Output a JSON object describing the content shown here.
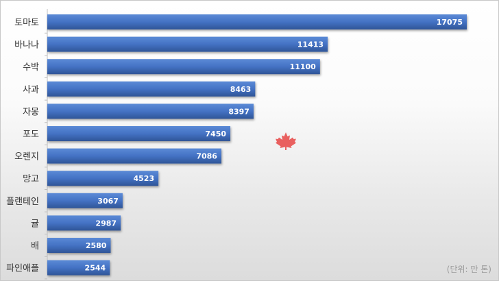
{
  "chart_data": {
    "type": "bar",
    "orientation": "horizontal",
    "categories": [
      "토마토",
      "바나나",
      "수박",
      "사과",
      "자몽",
      "포도",
      "오렌지",
      "망고",
      "플랜테인",
      "귤",
      "배",
      "파인애플"
    ],
    "values": [
      17075,
      11413,
      11100,
      8463,
      8397,
      7450,
      7086,
      4523,
      3067,
      2987,
      2580,
      2544
    ],
    "xlim": [
      0,
      17075
    ],
    "bar_color": "#4472c4",
    "grid": false,
    "legend": "none",
    "unit_note": "(단위: 만 톤)"
  },
  "watermark": {
    "icon": "maple-leaf-icon",
    "color": "#e8504f"
  }
}
